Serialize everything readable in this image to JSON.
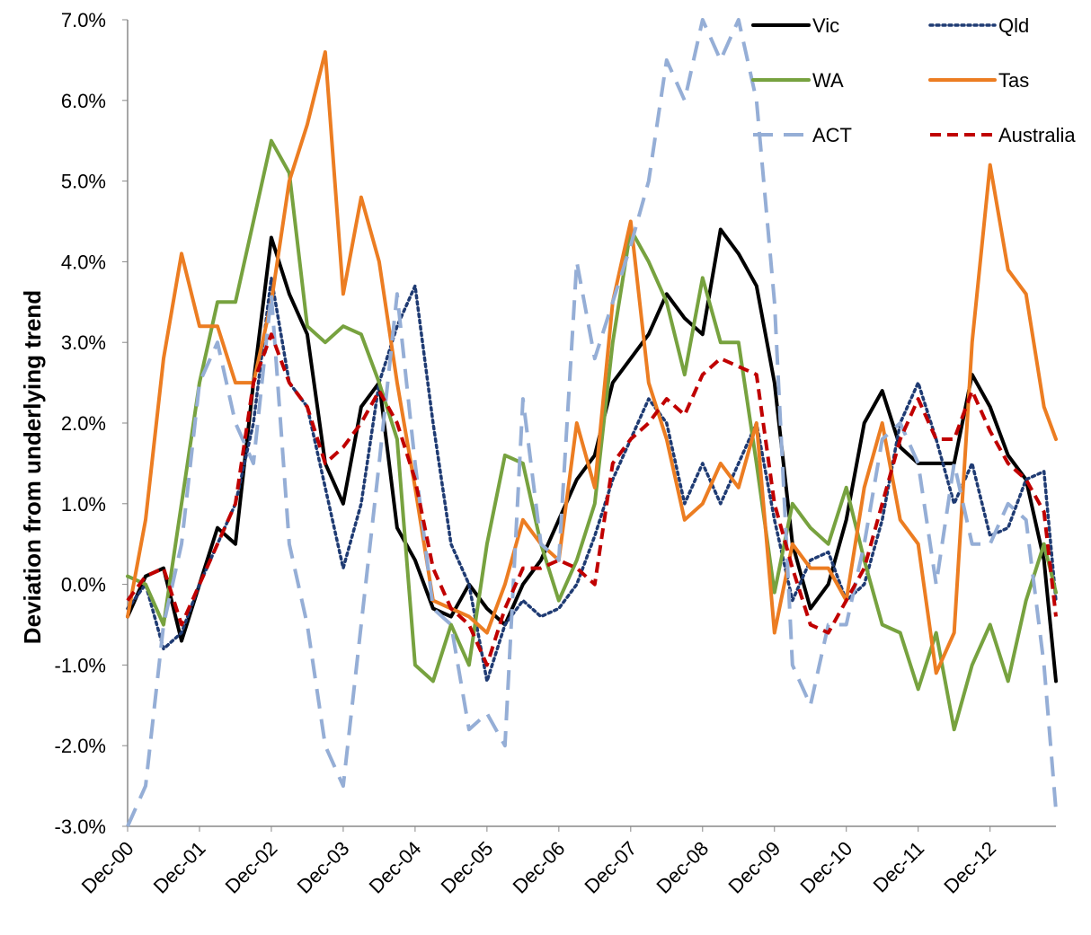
{
  "chart_data": {
    "type": "line",
    "y_label": "Deviation from underlying trend",
    "x": [
      0,
      3,
      6,
      9,
      12,
      15,
      18,
      21,
      24,
      27,
      30,
      33,
      36,
      39,
      42,
      45,
      48,
      51,
      54,
      57,
      60,
      63,
      66,
      69,
      72,
      75,
      78,
      81,
      84,
      87,
      90,
      93,
      96,
      99,
      102,
      105,
      108,
      111,
      114,
      117,
      120,
      123,
      126,
      129,
      132,
      135,
      138,
      141,
      144,
      147,
      150,
      153,
      155
    ],
    "xlim": [
      0,
      155
    ],
    "xticks": [
      {
        "value": 0,
        "label": "Dec-00"
      },
      {
        "value": 12,
        "label": "Dec-01"
      },
      {
        "value": 24,
        "label": "Dec-02"
      },
      {
        "value": 36,
        "label": "Dec-03"
      },
      {
        "value": 48,
        "label": "Dec-04"
      },
      {
        "value": 60,
        "label": "Dec-05"
      },
      {
        "value": 72,
        "label": "Dec-06"
      },
      {
        "value": 84,
        "label": "Dec-07"
      },
      {
        "value": 96,
        "label": "Dec-08"
      },
      {
        "value": 108,
        "label": "Dec-09"
      },
      {
        "value": 120,
        "label": "Dec-10"
      },
      {
        "value": 132,
        "label": "Dec-11"
      },
      {
        "value": 144,
        "label": "Dec-12"
      }
    ],
    "ylim": [
      -3,
      7
    ],
    "yticks": [
      {
        "value": -3,
        "label": "-3.0%"
      },
      {
        "value": -2,
        "label": "-2.0%"
      },
      {
        "value": -1,
        "label": "-1.0%"
      },
      {
        "value": 0,
        "label": "0.0%"
      },
      {
        "value": 1,
        "label": "1.0%"
      },
      {
        "value": 2,
        "label": "2.0%"
      },
      {
        "value": 3,
        "label": "3.0%"
      },
      {
        "value": 4,
        "label": "4.0%"
      },
      {
        "value": 5,
        "label": "5.0%"
      },
      {
        "value": 6,
        "label": "6.0%"
      },
      {
        "value": 7,
        "label": "7.0%"
      }
    ],
    "grid": false,
    "legend": "top-right",
    "series": [
      {
        "name": "Vic",
        "color": "#000000",
        "line_style": "solid",
        "values": [
          -0.4,
          0.1,
          0.2,
          -0.7,
          0.0,
          0.7,
          0.5,
          2.5,
          4.3,
          3.6,
          3.1,
          1.5,
          1.0,
          2.2,
          2.5,
          0.7,
          0.3,
          -0.3,
          -0.4,
          0.0,
          -0.3,
          -0.5,
          0.0,
          0.3,
          0.8,
          1.3,
          1.6,
          2.5,
          2.8,
          3.1,
          3.6,
          3.3,
          3.1,
          4.4,
          4.1,
          3.7,
          2.5,
          0.5,
          -0.3,
          0.0,
          0.8,
          2.0,
          2.4,
          1.7,
          1.5,
          1.5,
          1.5,
          2.6,
          2.2,
          1.6,
          1.3,
          0.3,
          -1.2
        ]
      },
      {
        "name": "Qld",
        "color": "#1f3b73",
        "line_style": "dotted",
        "values": [
          -0.3,
          0.0,
          -0.8,
          -0.6,
          0.0,
          0.5,
          1.0,
          2.0,
          3.8,
          2.5,
          2.2,
          1.2,
          0.2,
          1.0,
          2.5,
          3.2,
          3.7,
          2.0,
          0.5,
          0.0,
          -1.2,
          -0.5,
          -0.2,
          -0.4,
          -0.3,
          0.0,
          0.6,
          1.3,
          1.8,
          2.3,
          2.0,
          1.0,
          1.5,
          1.0,
          1.5,
          2.0,
          0.8,
          -0.2,
          0.3,
          0.4,
          -0.2,
          0.0,
          0.8,
          2.0,
          2.5,
          1.8,
          1.0,
          1.5,
          0.6,
          0.7,
          1.3,
          1.4,
          -0.2
        ]
      },
      {
        "name": "WA",
        "color": "#77a23f",
        "line_style": "solid",
        "values": [
          0.1,
          0.0,
          -0.5,
          1.0,
          2.5,
          3.5,
          3.5,
          4.5,
          5.5,
          5.1,
          3.2,
          3.0,
          3.2,
          3.1,
          2.5,
          1.8,
          -1.0,
          -1.2,
          -0.5,
          -1.0,
          0.5,
          1.6,
          1.5,
          0.5,
          -0.2,
          0.3,
          1.0,
          3.0,
          4.4,
          4.0,
          3.5,
          2.6,
          3.8,
          3.0,
          3.0,
          1.5,
          -0.1,
          1.0,
          0.7,
          0.5,
          1.2,
          0.3,
          -0.5,
          -0.6,
          -1.3,
          -0.6,
          -1.8,
          -1.0,
          -0.5,
          -1.2,
          -0.2,
          0.5,
          -0.1
        ]
      },
      {
        "name": "Tas",
        "color": "#ec7d22",
        "line_style": "solid",
        "values": [
          -0.4,
          0.8,
          2.8,
          4.1,
          3.2,
          3.2,
          2.5,
          2.5,
          3.5,
          5.0,
          5.7,
          6.6,
          3.6,
          4.8,
          4.0,
          2.5,
          1.2,
          -0.2,
          -0.3,
          -0.4,
          -0.6,
          0.0,
          0.8,
          0.5,
          0.3,
          2.0,
          1.2,
          3.5,
          4.5,
          2.5,
          1.8,
          0.8,
          1.0,
          1.5,
          1.2,
          2.0,
          -0.6,
          0.5,
          0.2,
          0.2,
          -0.2,
          1.2,
          2.0,
          0.8,
          0.5,
          -1.1,
          -0.6,
          3.0,
          5.2,
          3.9,
          3.6,
          2.2,
          1.8
        ]
      },
      {
        "name": "ACT",
        "color": "#95aed6",
        "line_style": "dashed",
        "values": [
          -3.0,
          -2.5,
          -0.5,
          0.5,
          2.5,
          3.0,
          2.0,
          1.5,
          3.6,
          0.5,
          -0.5,
          -2.0,
          -2.5,
          -0.5,
          1.5,
          3.6,
          1.5,
          -0.3,
          -0.5,
          -1.8,
          -1.6,
          -2.0,
          2.3,
          0.5,
          0.3,
          4.0,
          2.8,
          3.5,
          4.2,
          5.0,
          6.5,
          6.0,
          7.0,
          6.5,
          7.0,
          6.0,
          3.5,
          -1.0,
          -1.5,
          -0.5,
          -0.5,
          0.5,
          1.8,
          2.0,
          1.5,
          0.0,
          1.5,
          0.5,
          0.5,
          1.0,
          0.8,
          -1.0,
          -2.8
        ]
      },
      {
        "name": "Australia",
        "color": "#c00000",
        "line_style": "dashed-short",
        "values": [
          -0.2,
          0.1,
          0.2,
          -0.5,
          0.0,
          0.5,
          1.0,
          2.5,
          3.1,
          2.5,
          2.2,
          1.5,
          1.7,
          2.0,
          2.4,
          2.0,
          1.3,
          0.2,
          -0.3,
          -0.5,
          -1.0,
          -0.3,
          0.2,
          0.2,
          0.3,
          0.2,
          0.0,
          1.5,
          1.8,
          2.0,
          2.3,
          2.1,
          2.6,
          2.8,
          2.7,
          2.6,
          1.0,
          0.2,
          -0.5,
          -0.6,
          -0.2,
          0.2,
          1.0,
          1.8,
          2.3,
          1.8,
          1.8,
          2.4,
          1.9,
          1.5,
          1.3,
          0.9,
          -0.4
        ]
      }
    ]
  }
}
